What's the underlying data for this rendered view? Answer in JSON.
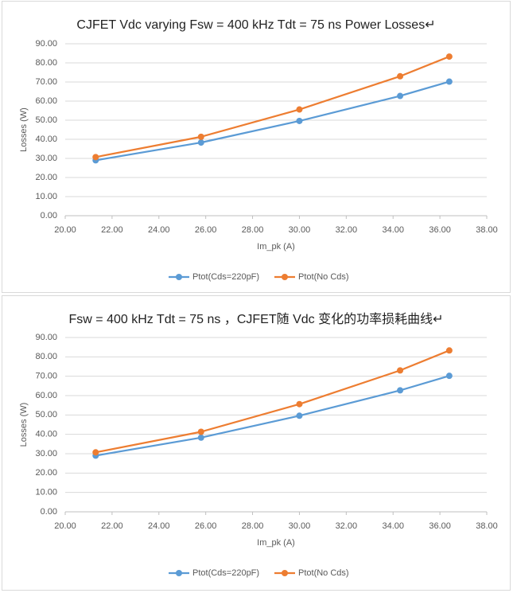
{
  "chart_data": [
    {
      "type": "line",
      "title": "CJFET Vdc varying  Fsw = 400 kHz Tdt = 75 ns Power Losses↵",
      "x_label": "Im_pk (A)",
      "y_label": "Losses (W)",
      "x": [
        21.3,
        25.8,
        30.0,
        34.3,
        36.4
      ],
      "series": [
        {
          "name": "Ptot(Cds=220pF)",
          "color": "#5b9bd5",
          "values": [
            29.0,
            38.3,
            49.6,
            62.7,
            70.2
          ]
        },
        {
          "name": "Ptot(No Cds)",
          "color": "#ed7d31",
          "values": [
            30.7,
            41.3,
            55.6,
            73.0,
            83.3
          ]
        }
      ],
      "xlim": [
        20,
        38
      ],
      "xticks": [
        {
          "value": 20,
          "label": "20.00"
        },
        {
          "value": 22,
          "label": "22.00"
        },
        {
          "value": 24,
          "label": "24.00"
        },
        {
          "value": 26,
          "label": "26.00"
        },
        {
          "value": 28,
          "label": "28.00"
        },
        {
          "value": 30,
          "label": "30.00"
        },
        {
          "value": 32,
          "label": "32.00"
        },
        {
          "value": 34,
          "label": "34.00"
        },
        {
          "value": 36,
          "label": "36.00"
        },
        {
          "value": 38,
          "label": "38.00"
        }
      ],
      "ylim": [
        0,
        90
      ],
      "yticks": [
        {
          "value": 0,
          "label": "0.00"
        },
        {
          "value": 10,
          "label": "10.00"
        },
        {
          "value": 20,
          "label": "20.00"
        },
        {
          "value": 30,
          "label": "30.00"
        },
        {
          "value": 40,
          "label": "40.00"
        },
        {
          "value": 50,
          "label": "50.00"
        },
        {
          "value": 60,
          "label": "60.00"
        },
        {
          "value": 70,
          "label": "70.00"
        },
        {
          "value": 80,
          "label": "80.00"
        },
        {
          "value": 90,
          "label": "90.00"
        }
      ],
      "grid": true,
      "legend": "bottom"
    },
    {
      "type": "line",
      "title": "Fsw = 400 kHz Tdt = 75 ns ，CJFET随 Vdc 变化的功率损耗曲线↵",
      "x_label": "Im_pk (A)",
      "y_label": "Losses (W)",
      "x": [
        21.3,
        25.8,
        30.0,
        34.3,
        36.4
      ],
      "series": [
        {
          "name": "Ptot(Cds=220pF)",
          "color": "#5b9bd5",
          "values": [
            29.0,
            38.3,
            49.6,
            62.7,
            70.2
          ]
        },
        {
          "name": "Ptot(No Cds)",
          "color": "#ed7d31",
          "values": [
            30.7,
            41.3,
            55.6,
            73.0,
            83.3
          ]
        }
      ],
      "xlim": [
        20,
        38
      ],
      "xticks": [
        {
          "value": 20,
          "label": "20.00"
        },
        {
          "value": 22,
          "label": "22.00"
        },
        {
          "value": 24,
          "label": "24.00"
        },
        {
          "value": 26,
          "label": "26.00"
        },
        {
          "value": 28,
          "label": "28.00"
        },
        {
          "value": 30,
          "label": "30.00"
        },
        {
          "value": 32,
          "label": "32.00"
        },
        {
          "value": 34,
          "label": "34.00"
        },
        {
          "value": 36,
          "label": "36.00"
        },
        {
          "value": 38,
          "label": "38.00"
        }
      ],
      "ylim": [
        0,
        90
      ],
      "yticks": [
        {
          "value": 0,
          "label": "0.00"
        },
        {
          "value": 10,
          "label": "10.00"
        },
        {
          "value": 20,
          "label": "20.00"
        },
        {
          "value": 30,
          "label": "30.00"
        },
        {
          "value": 40,
          "label": "40.00"
        },
        {
          "value": 50,
          "label": "50.00"
        },
        {
          "value": 60,
          "label": "60.00"
        },
        {
          "value": 70,
          "label": "70.00"
        },
        {
          "value": 80,
          "label": "80.00"
        },
        {
          "value": 90,
          "label": "90.00"
        }
      ],
      "grid": true,
      "legend": "bottom"
    }
  ]
}
